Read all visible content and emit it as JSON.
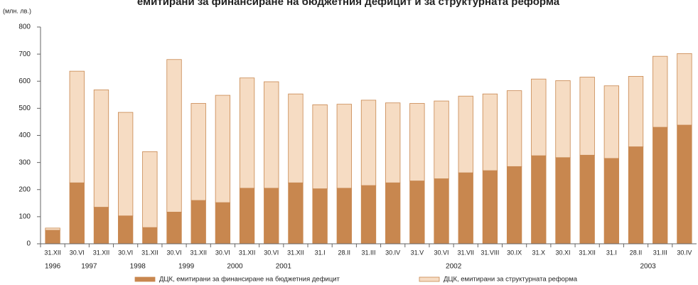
{
  "chart_data": {
    "type": "stacked_bar",
    "title": "емитирани за финансиране на бюджетния дефицит и за структурната реформа",
    "y_label": "(млн. лв.)",
    "categories": [
      "31.XII",
      "30.VI",
      "31.XII",
      "30.VI",
      "31.XII",
      "30.VI",
      "31.XII",
      "30.VI",
      "31.XII",
      "30.VI",
      "31.XII",
      "31.I",
      "28.II",
      "31.III",
      "30.IV",
      "31.V",
      "30.VI",
      "31.VII",
      "31.VIII",
      "30.IX",
      "31.X",
      "30.XI",
      "31.XII",
      "31.I",
      "28.II",
      "31.III",
      "30.IV"
    ],
    "groups": [
      {
        "label": "1996",
        "count": 1
      },
      {
        "label": "1997",
        "count": 2
      },
      {
        "label": "1998",
        "count": 2
      },
      {
        "label": "1999",
        "count": 2
      },
      {
        "label": "2000",
        "count": 2
      },
      {
        "label": "2001",
        "count": 2
      },
      {
        "label": "2002",
        "count": 12
      },
      {
        "label": "2003",
        "count": 4
      }
    ],
    "series": [
      {
        "name": "ДЦК, емитирани за финансиране на бюджетния дефицит",
        "color": "#c8874f",
        "values": [
          50,
          225,
          135,
          103,
          60,
          117,
          160,
          152,
          205,
          205,
          225,
          203,
          205,
          215,
          225,
          232,
          240,
          262,
          270,
          285,
          325,
          318,
          327,
          315,
          358,
          430,
          438
        ]
      },
      {
        "name": "ДЦК, емитирани за структурната реформа",
        "color": "#f6dcc3",
        "values": [
          8,
          412,
          433,
          382,
          280,
          563,
          358,
          396,
          407,
          393,
          328,
          310,
          310,
          315,
          295,
          286,
          287,
          283,
          283,
          280,
          283,
          284,
          288,
          268,
          260,
          262,
          264
        ]
      }
    ],
    "ylim": [
      0,
      800
    ],
    "yticks": [
      0,
      100,
      200,
      300,
      400,
      500,
      600,
      700,
      800
    ]
  }
}
